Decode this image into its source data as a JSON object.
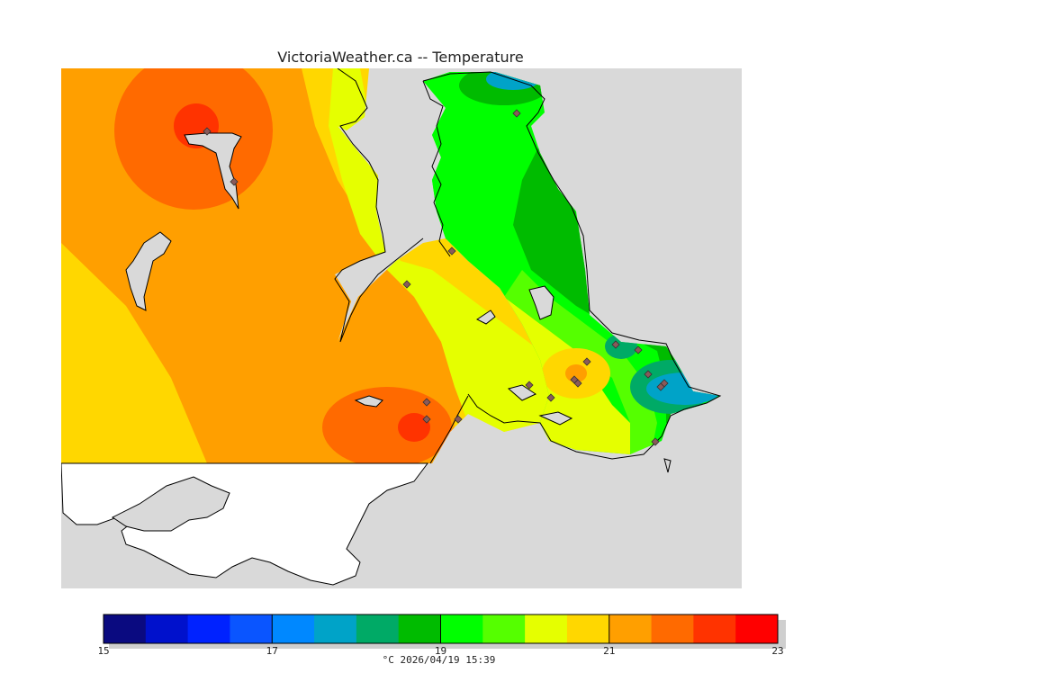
{
  "title": "VictoriaWeather.ca -- Temperature",
  "caption": "°C  2026/04/19 15:39",
  "map": {
    "land_no_data_color": "#ffffff",
    "water_color": "#d9d9d9",
    "coast_color": "#000000",
    "station_marker_color": "#8a5a5a"
  },
  "colorbar": {
    "min": 15,
    "max": 23,
    "tick_labels": [
      "15",
      "17",
      "19",
      "21",
      "23"
    ],
    "colors": [
      "#0a0a80",
      "#0011cc",
      "#0022ff",
      "#0a55ff",
      "#0088ff",
      "#00a3c8",
      "#00aa66",
      "#00bb00",
      "#00ff00",
      "#55ff00",
      "#e5ff00",
      "#ffd700",
      "#ff9f00",
      "#ff6a00",
      "#ff3300",
      "#ff0000"
    ]
  }
}
